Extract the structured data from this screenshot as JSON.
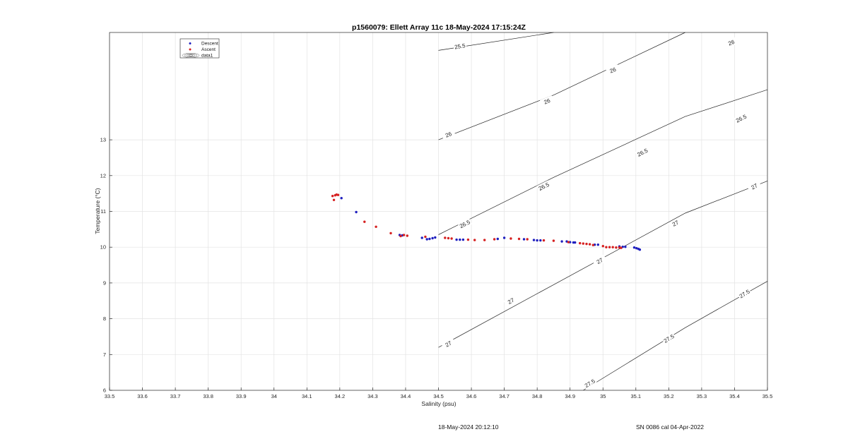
{
  "chart_data": {
    "type": "scatter",
    "title": "p1560079: Ellett Array 11c 18-May-2024 17:15:24Z",
    "xlabel": "Salinity (psu)",
    "ylabel": "Temperature (°C)",
    "xlim": [
      33.5,
      35.5
    ],
    "ylim": [
      6,
      16
    ],
    "xticks": [
      "33.5",
      "33.6",
      "33.7",
      "33.8",
      "33.9",
      "34",
      "34.1",
      "34.2",
      "34.3",
      "34.4",
      "34.5",
      "34.6",
      "34.7",
      "34.8",
      "34.9",
      "35",
      "35.1",
      "35.2",
      "35.3",
      "35.4",
      "35.5"
    ],
    "yticks": [
      "6",
      "7",
      "8",
      "9",
      "10",
      "11",
      "12",
      "13"
    ],
    "grid": true,
    "legend": {
      "position": "top-left",
      "entries": [
        "Descent",
        "Ascent",
        "data1"
      ]
    },
    "series": [
      {
        "name": "Descent",
        "color": "#1f1fbf",
        "marker": "dot",
        "x": [
          34.205,
          34.25,
          34.382,
          34.39,
          34.45,
          34.465,
          34.473,
          34.482,
          34.49,
          34.555,
          34.565,
          34.575,
          34.68,
          34.7,
          34.76,
          34.79,
          34.8,
          34.81,
          34.875,
          34.89,
          34.9,
          34.91,
          34.915,
          34.975,
          34.985,
          35.05,
          35.06,
          35.068,
          35.095,
          35.102,
          35.108,
          35.112
        ],
        "y": [
          11.37,
          10.98,
          10.34,
          10.33,
          10.26,
          10.22,
          10.23,
          10.25,
          10.27,
          10.21,
          10.21,
          10.21,
          10.23,
          10.26,
          10.22,
          10.2,
          10.19,
          10.19,
          10.16,
          10.16,
          10.14,
          10.13,
          10.13,
          10.07,
          10.07,
          10.02,
          10.01,
          10.01,
          9.99,
          9.97,
          9.95,
          9.93
        ]
      },
      {
        "name": "Ascent",
        "color": "#d62020",
        "marker": "dot",
        "x": [
          34.178,
          34.182,
          34.186,
          34.19,
          34.195,
          34.275,
          34.31,
          34.355,
          34.385,
          34.395,
          34.405,
          34.46,
          34.52,
          34.53,
          34.54,
          34.59,
          34.61,
          34.64,
          34.67,
          34.72,
          34.745,
          34.77,
          34.82,
          34.85,
          34.895,
          34.93,
          34.94,
          34.95,
          34.96,
          34.97,
          35.0,
          35.01,
          35.02,
          35.03,
          35.04,
          35.05,
          35.055
        ],
        "y": [
          11.43,
          11.32,
          11.45,
          11.47,
          11.46,
          10.71,
          10.57,
          10.39,
          10.31,
          10.34,
          10.32,
          10.29,
          10.26,
          10.25,
          10.24,
          10.21,
          10.2,
          10.2,
          10.22,
          10.24,
          10.23,
          10.22,
          10.19,
          10.18,
          10.14,
          10.11,
          10.1,
          10.09,
          10.08,
          10.06,
          10.03,
          10.0,
          10.0,
          10.0,
          9.99,
          9.99,
          9.98
        ]
      }
    ],
    "contours": [
      {
        "level": "25.5",
        "color": "#222222",
        "points": [
          [
            34.5,
            15.5
          ],
          [
            34.85,
            16.0
          ]
        ],
        "labels": [
          {
            "x": 34.565,
            "y": 15.62
          }
        ]
      },
      {
        "level": "26",
        "color": "#222222",
        "points": [
          [
            34.5,
            13.0
          ],
          [
            34.85,
            14.25
          ],
          [
            35.25,
            16.0
          ]
        ],
        "labels": [
          {
            "x": 34.53,
            "y": 13.15
          },
          {
            "x": 34.83,
            "y": 14.08
          },
          {
            "x": 35.03,
            "y": 14.95
          },
          {
            "x": 35.39,
            "y": 15.72
          }
        ]
      },
      {
        "level": "26.5",
        "color": "#222222",
        "points": [
          [
            34.5,
            10.35
          ],
          [
            34.85,
            11.95
          ],
          [
            35.25,
            13.65
          ],
          [
            35.5,
            14.4
          ]
        ],
        "labels": [
          {
            "x": 34.58,
            "y": 10.65
          },
          {
            "x": 34.82,
            "y": 11.7
          },
          {
            "x": 35.12,
            "y": 12.65
          },
          {
            "x": 35.42,
            "y": 13.6
          }
        ]
      },
      {
        "level": "27",
        "color": "#222222",
        "points": [
          [
            34.5,
            7.2
          ],
          [
            34.85,
            8.95
          ],
          [
            35.25,
            10.95
          ],
          [
            35.5,
            11.85
          ]
        ],
        "labels": [
          {
            "x": 34.53,
            "y": 7.3
          },
          {
            "x": 34.72,
            "y": 8.5
          },
          {
            "x": 34.99,
            "y": 9.62
          },
          {
            "x": 35.22,
            "y": 10.67
          },
          {
            "x": 35.46,
            "y": 11.7
          }
        ]
      },
      {
        "level": "27.5",
        "color": "#222222",
        "points": [
          [
            34.94,
            6.0
          ],
          [
            35.25,
            7.75
          ],
          [
            35.5,
            9.05
          ]
        ],
        "labels": [
          {
            "x": 34.96,
            "y": 6.2
          },
          {
            "x": 35.2,
            "y": 7.45
          },
          {
            "x": 35.43,
            "y": 8.7
          }
        ]
      }
    ]
  },
  "footer": {
    "date": "18-May-2024 20:12:10",
    "serial": "SN 0086 cal 04-Apr-2022"
  }
}
